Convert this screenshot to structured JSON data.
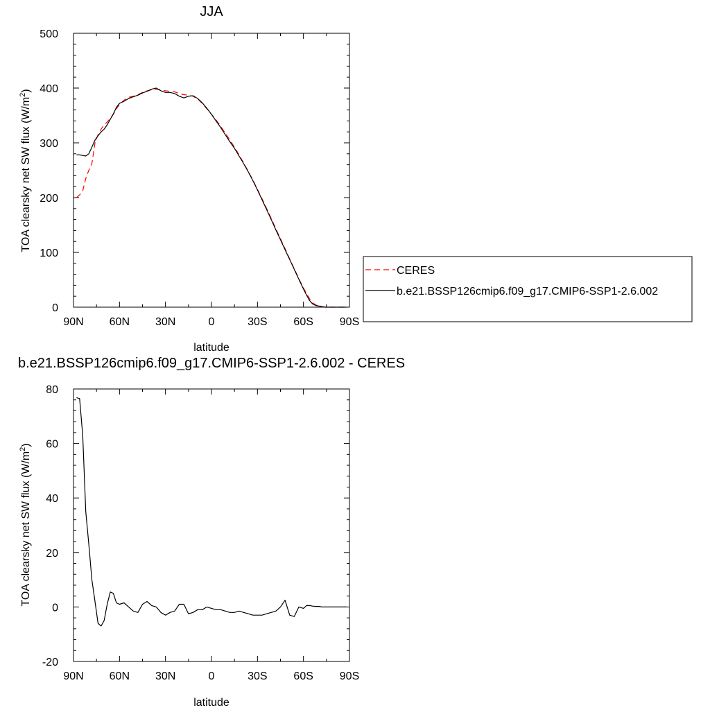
{
  "chart_data": [
    {
      "type": "line",
      "title": "JJA",
      "xlabel": "latitude",
      "ylabel": "TOA clearsky net SW flux (W/m",
      "ylabel_sup": "2",
      "ylabel_tail": ")",
      "xlim": [
        90,
        -90
      ],
      "ylim": [
        0,
        500
      ],
      "xticks": [
        90,
        60,
        30,
        0,
        -30,
        -60,
        -90
      ],
      "xtick_labels": [
        "90N",
        "60N",
        "30N",
        "0",
        "30S",
        "60S",
        "90S"
      ],
      "yticks": [
        0,
        100,
        200,
        300,
        400,
        500
      ],
      "ytick_labels": [
        "0",
        "100",
        "200",
        "300",
        "400",
        "500"
      ],
      "legend_position": "right",
      "series": [
        {
          "name": "CERES",
          "color": "#ff0000",
          "dash": "dashed",
          "x": [
            88,
            86,
            84,
            82,
            80,
            78,
            76,
            74,
            72,
            70,
            68,
            66,
            64,
            62,
            60,
            57,
            54,
            51,
            48,
            45,
            42,
            39,
            36,
            33,
            30,
            27,
            24,
            21,
            18,
            15,
            12,
            9,
            6,
            3,
            0,
            -3,
            -6,
            -9,
            -12,
            -15,
            -18,
            -21,
            -24,
            -27,
            -30,
            -33,
            -36,
            -39,
            -42,
            -45,
            -48,
            -51,
            -54,
            -57,
            -60,
            -62,
            -64,
            -66,
            -68,
            -70,
            -72,
            -74,
            -76,
            -78,
            -80,
            -82,
            -84,
            -86,
            -88
          ],
          "y": [
            200,
            205,
            212,
            235,
            250,
            262,
            300,
            315,
            325,
            333,
            338,
            345,
            352,
            362,
            370,
            378,
            383,
            385,
            388,
            392,
            395,
            397,
            398,
            397,
            395,
            394,
            393,
            390,
            388,
            387,
            385,
            380,
            372,
            362,
            352,
            342,
            330,
            318,
            305,
            292,
            278,
            263,
            248,
            232,
            215,
            198,
            180,
            162,
            143,
            125,
            107,
            88,
            70,
            52,
            35,
            25,
            15,
            8,
            4,
            2,
            1,
            0,
            0,
            0,
            0,
            0,
            0,
            0,
            0
          ]
        },
        {
          "name": "b.e21.BSSP126cmip6.f09_g17.CMIP6-SSP1-2.6.002",
          "color": "#000000",
          "dash": "solid",
          "x": [
            88,
            86,
            84,
            82,
            80,
            78,
            76,
            74,
            72,
            70,
            68,
            66,
            64,
            62,
            60,
            57,
            54,
            51,
            48,
            45,
            42,
            39,
            36,
            33,
            30,
            27,
            24,
            21,
            18,
            15,
            12,
            9,
            6,
            3,
            0,
            -3,
            -6,
            -9,
            -12,
            -15,
            -18,
            -21,
            -24,
            -27,
            -30,
            -33,
            -36,
            -39,
            -42,
            -45,
            -48,
            -51,
            -54,
            -57,
            -60,
            -62,
            -64,
            -66,
            -68,
            -70,
            -72,
            -74,
            -76,
            -78,
            -80,
            -82,
            -84,
            -86,
            -88
          ],
          "y": [
            278,
            278,
            277,
            276,
            280,
            292,
            305,
            313,
            320,
            325,
            333,
            343,
            353,
            365,
            372,
            376,
            381,
            384,
            387,
            391,
            394,
            398,
            400,
            395,
            392,
            392,
            390,
            385,
            382,
            385,
            386,
            381,
            373,
            363,
            352,
            340,
            328,
            315,
            302,
            290,
            276,
            262,
            247,
            231,
            214,
            196,
            178,
            160,
            141,
            123,
            105,
            87,
            69,
            51,
            33,
            22,
            12,
            6,
            3,
            2,
            1,
            0,
            0,
            0,
            0,
            0,
            0,
            0,
            0
          ]
        }
      ]
    },
    {
      "type": "line",
      "title": "b.e21.BSSP126cmip6.f09_g17.CMIP6-SSP1-2.6.002 - CERES",
      "xlabel": "latitude",
      "ylabel": "TOA clearsky net SW flux (W/m",
      "ylabel_sup": "2",
      "ylabel_tail": ")",
      "xlim": [
        90,
        -90
      ],
      "ylim": [
        -20,
        80
      ],
      "xticks": [
        90,
        60,
        30,
        0,
        -30,
        -60,
        -90
      ],
      "xtick_labels": [
        "90N",
        "60N",
        "30N",
        "0",
        "30S",
        "60S",
        "90S"
      ],
      "yticks": [
        -20,
        0,
        20,
        40,
        60,
        80
      ],
      "ytick_labels": [
        "-20",
        "0",
        "20",
        "40",
        "60",
        "80"
      ],
      "series": [
        {
          "color": "#000000",
          "dash": "solid",
          "x": [
            88,
            86,
            84,
            82,
            80,
            78,
            76,
            74,
            72,
            70,
            68,
            66,
            64,
            62,
            60,
            57,
            54,
            51,
            48,
            45,
            42,
            39,
            36,
            33,
            30,
            27,
            24,
            21,
            18,
            15,
            12,
            9,
            6,
            3,
            0,
            -3,
            -6,
            -9,
            -12,
            -15,
            -18,
            -21,
            -24,
            -27,
            -30,
            -33,
            -36,
            -39,
            -42,
            -45,
            -48,
            -51,
            -54,
            -57,
            -60,
            -62,
            -64,
            -66,
            -68,
            -70,
            -72,
            -74,
            -76,
            -78,
            -80,
            -82,
            -84,
            -86,
            -88
          ],
          "y": [
            76.8,
            76.5,
            63,
            35,
            23,
            10,
            2,
            -6,
            -7,
            -5,
            1,
            5.5,
            5,
            1.5,
            1,
            1.5,
            0,
            -1.5,
            -2,
            1,
            2,
            0.5,
            0,
            -2,
            -3,
            -2,
            -1.5,
            1,
            1,
            -2.5,
            -2,
            -1,
            -1,
            0,
            -0.5,
            -1,
            -1,
            -1.5,
            -2,
            -2,
            -1.5,
            -2,
            -2.5,
            -3,
            -3,
            -3,
            -2.5,
            -2,
            -1.5,
            0,
            2.5,
            -3,
            -3.5,
            0,
            -0.5,
            0.5,
            0.5,
            0.3,
            0.2,
            0.2,
            0,
            0,
            0,
            0,
            0,
            0,
            0,
            0,
            0
          ]
        }
      ]
    }
  ]
}
